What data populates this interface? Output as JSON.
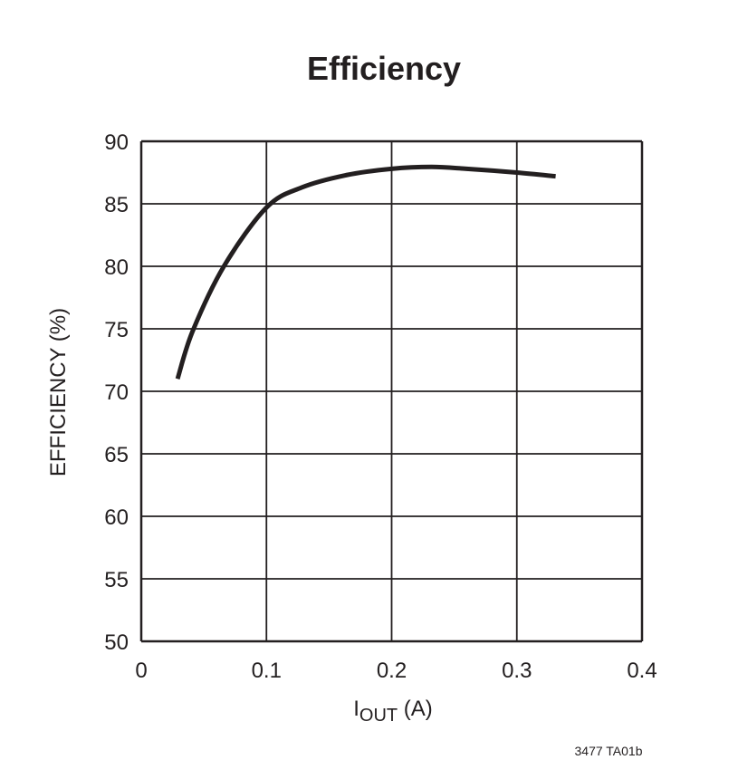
{
  "chart_data": {
    "type": "line",
    "title": "Efficiency",
    "xlabel_main": "I",
    "xlabel_sub": "OUT",
    "xlabel_unit": " (A)",
    "ylabel": "EFFICIENCY (%)",
    "xlim": [
      0,
      0.4
    ],
    "ylim": [
      50,
      90
    ],
    "xticks": [
      "0",
      "0.1",
      "0.2",
      "0.3",
      "0.4"
    ],
    "yticks": [
      "50",
      "55",
      "60",
      "65",
      "70",
      "75",
      "80",
      "85",
      "90"
    ],
    "grid": true,
    "line_color": "#231f20",
    "series": [
      {
        "x": [
          0.029,
          0.041,
          0.066,
          0.1,
          0.128,
          0.164,
          0.2,
          0.232,
          0.26,
          0.3,
          0.331
        ],
        "y": [
          71.0,
          74.8,
          80.0,
          84.7,
          86.3,
          87.3,
          87.8,
          87.95,
          87.8,
          87.5,
          87.2
        ]
      }
    ],
    "footnote": "3477 TA01b"
  }
}
